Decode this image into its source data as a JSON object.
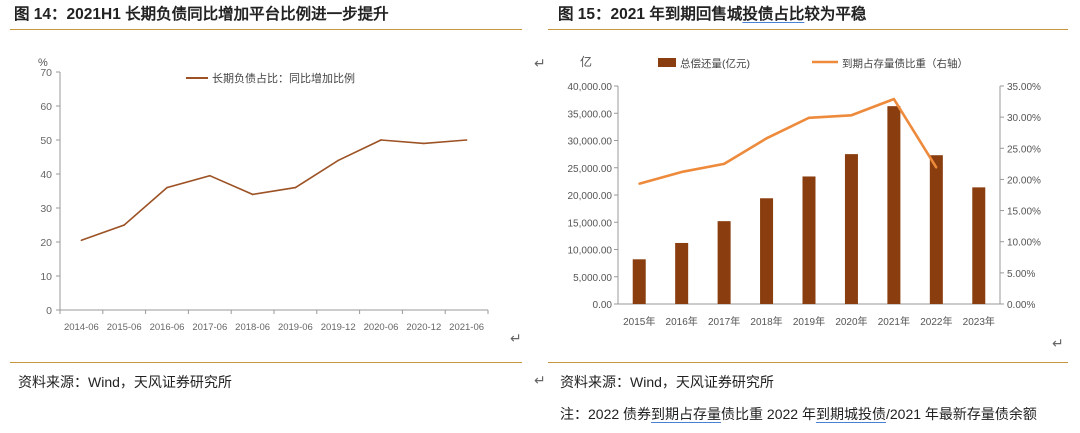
{
  "left": {
    "title": "图 14：2021H1 长期负债同比增加平台比例进一步提升",
    "source": "资料来源：Wind，天风证券研究所"
  },
  "right": {
    "title_a": "图 15：2021 年到期回售城",
    "title_b": "投债占比",
    "title_c": "较为平稳",
    "source": "资料来源：Wind，天风证券研究所",
    "note_a": "注：2022 债券",
    "note_b": "到期占存量",
    "note_c": "债比重 2022 年",
    "note_d": "到期城投债",
    "note_e": "/2021 年最新存量债余额"
  },
  "colors": {
    "line_left": "#9c5224",
    "bar_right": "#8a3d0e",
    "line_right": "#ed8a3b",
    "rule": "#c8963e"
  },
  "chart_data": [
    {
      "type": "line",
      "unit_label": "%",
      "x": [
        "2014-06",
        "2015-06",
        "2016-06",
        "2017-06",
        "2018-06",
        "2019-06",
        "2019-12",
        "2020-06",
        "2020-12",
        "2021-06"
      ],
      "series": [
        {
          "name": "长期负债占比：同比增加比例",
          "values": [
            20.5,
            25,
            36,
            39.5,
            34,
            36,
            44,
            50,
            49,
            50
          ]
        }
      ],
      "ylim": [
        0,
        70
      ],
      "yticks": [
        0,
        10,
        20,
        30,
        40,
        50,
        60,
        70
      ],
      "legend": "top-center",
      "grid": false
    },
    {
      "type": "bar+line",
      "unit_label": "亿",
      "categories": [
        "2015年",
        "2016年",
        "2017年",
        "2018年",
        "2019年",
        "2020年",
        "2021年",
        "2022年",
        "2023年"
      ],
      "series": [
        {
          "name": "总偿还量(亿元)",
          "type": "bar",
          "axis": "left",
          "values": [
            8200,
            11200,
            15200,
            19400,
            23400,
            27500,
            36300,
            27300,
            21400
          ]
        },
        {
          "name": "到期占存量债比重（右轴）",
          "type": "line",
          "axis": "right",
          "values": [
            19.3,
            21.2,
            22.5,
            26.6,
            29.9,
            30.3,
            32.9,
            21.9,
            null
          ]
        }
      ],
      "ylim_left": [
        0,
        40000
      ],
      "yticks_left": [
        "0.00",
        "5,000.00",
        "10,000.00",
        "15,000.00",
        "20,000.00",
        "25,000.00",
        "30,000.00",
        "35,000.00",
        "40,000.00"
      ],
      "ylim_right": [
        0,
        35
      ],
      "yticks_right": [
        "0.00%",
        "5.00%",
        "10.00%",
        "15.00%",
        "20.00%",
        "25.00%",
        "30.00%",
        "35.00%"
      ],
      "legend": "top",
      "grid": false
    }
  ]
}
